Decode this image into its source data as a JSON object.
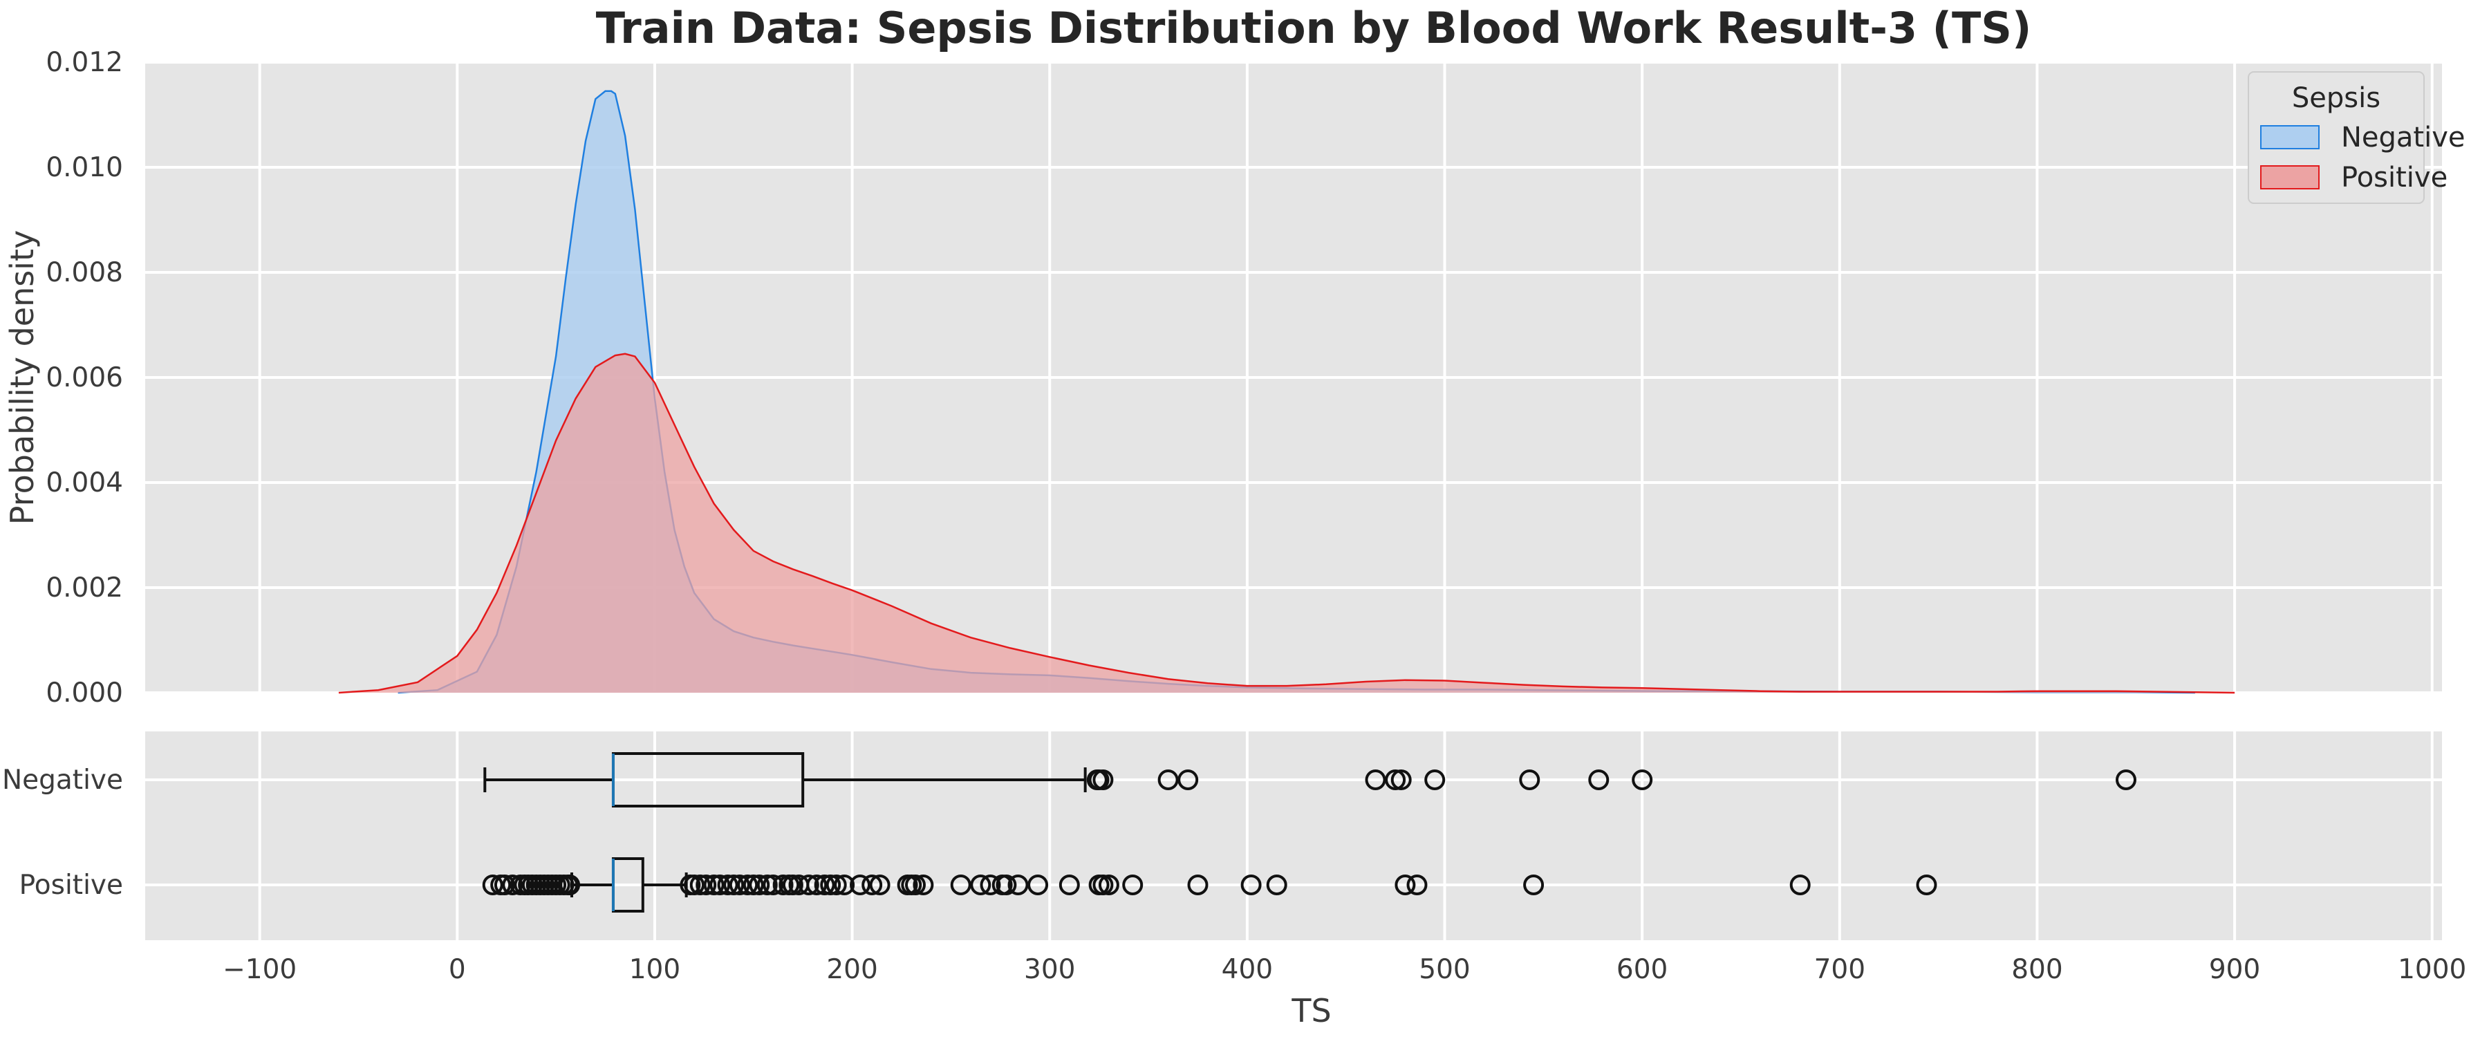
{
  "chart_data": {
    "title": "Train Data: Sepsis Distribution by Blood Work Result-3 (TS)",
    "xlabel": "TS",
    "xlim": [
      -158,
      1005
    ],
    "x_ticks": [
      -100,
      0,
      100,
      200,
      300,
      400,
      500,
      600,
      700,
      800,
      900,
      1000
    ],
    "x_tick_labels": [
      "−100",
      "0",
      "100",
      "200",
      "300",
      "400",
      "500",
      "600",
      "700",
      "800",
      "900",
      "1000"
    ],
    "grid": true,
    "legend": {
      "title": "Sepsis",
      "placement": "top-right",
      "entries": [
        "Negative",
        "Positive"
      ]
    },
    "panels": [
      {
        "type": "area",
        "kind": "kde",
        "ylabel": "Probability density",
        "ylim": [
          0,
          0.012
        ],
        "y_ticks": [
          0,
          0.002,
          0.004,
          0.006,
          0.008,
          0.01,
          0.012
        ],
        "y_tick_labels": [
          "0.000",
          "0.002",
          "0.004",
          "0.006",
          "0.008",
          "0.010",
          "0.012"
        ],
        "series": [
          {
            "name": "Negative",
            "color": "#1f7fe0",
            "fill": "#aecff0",
            "x": [
              -30,
              -10,
              10,
              20,
              30,
              40,
              50,
              55,
              60,
              65,
              70,
              75,
              78,
              80,
              85,
              90,
              95,
              100,
              105,
              110,
              115,
              120,
              130,
              140,
              150,
              160,
              170,
              180,
              190,
              200,
              220,
              240,
              260,
              280,
              300,
              320,
              340,
              360,
              380,
              400,
              430,
              460,
              490,
              520,
              550,
              580,
              610,
              650,
              700,
              750,
              800,
              850,
              880
            ],
            "y": [
              0,
              5e-05,
              0.0004,
              0.0011,
              0.0024,
              0.0042,
              0.0064,
              0.0079,
              0.0093,
              0.0105,
              0.0113,
              0.01145,
              0.01145,
              0.0114,
              0.0106,
              0.0092,
              0.0074,
              0.0056,
              0.0042,
              0.0031,
              0.0024,
              0.0019,
              0.0014,
              0.00117,
              0.00105,
              0.00097,
              0.0009,
              0.00084,
              0.00078,
              0.00072,
              0.00058,
              0.00045,
              0.00038,
              0.00035,
              0.00033,
              0.00028,
              0.00022,
              0.00017,
              0.00013,
              0.0001,
              8e-05,
              7e-05,
              6e-05,
              6e-05,
              5e-05,
              4e-05,
              3e-05,
              3e-05,
              2e-05,
              2e-05,
              1e-05,
              1e-05,
              0
            ]
          },
          {
            "name": "Positive",
            "color": "#e31a1c",
            "fill": "#eca3a3",
            "x": [
              -60,
              -40,
              -20,
              0,
              10,
              20,
              30,
              40,
              50,
              60,
              70,
              80,
              85,
              90,
              100,
              110,
              120,
              130,
              140,
              150,
              160,
              170,
              180,
              190,
              200,
              220,
              240,
              260,
              280,
              300,
              320,
              340,
              360,
              380,
              400,
              420,
              440,
              460,
              480,
              500,
              520,
              540,
              560,
              580,
              600,
              620,
              640,
              660,
              680,
              700,
              720,
              740,
              760,
              780,
              800,
              820,
              840,
              860,
              880,
              900
            ],
            "y": [
              0,
              5e-05,
              0.0002,
              0.0007,
              0.0012,
              0.0019,
              0.0028,
              0.0038,
              0.0048,
              0.0056,
              0.0062,
              0.00642,
              0.00645,
              0.0064,
              0.0059,
              0.0051,
              0.0043,
              0.0036,
              0.0031,
              0.0027,
              0.0025,
              0.00235,
              0.00222,
              0.00208,
              0.00195,
              0.00165,
              0.00132,
              0.00105,
              0.00085,
              0.00068,
              0.00052,
              0.00038,
              0.00026,
              0.00018,
              0.00013,
              0.00013,
              0.00016,
              0.00021,
              0.00024,
              0.00023,
              0.00019,
              0.00015,
              0.00012,
              0.0001,
              9e-05,
              7e-05,
              5e-05,
              3e-05,
              2e-05,
              2e-05,
              2e-05,
              2e-05,
              2e-05,
              2e-05,
              3e-05,
              3e-05,
              3e-05,
              2e-05,
              1e-05,
              0
            ]
          }
        ]
      },
      {
        "type": "box",
        "categories": [
          "Negative",
          "Positive"
        ],
        "boxes": [
          {
            "category": "Negative",
            "whisker_low": 14,
            "q1": 79,
            "median": 79,
            "q3": 175,
            "whisker_high": 318,
            "outliers": [
              324,
              325,
              327,
              360,
              370,
              465,
              475,
              478,
              495,
              543,
              578,
              600,
              845
            ]
          },
          {
            "category": "Positive",
            "whisker_low": 58,
            "q1": 79,
            "median": 79,
            "q3": 94,
            "whisker_high": 116,
            "outliers": [
              18,
              22,
              24,
              28,
              32,
              34,
              36,
              38,
              40,
              42,
              44,
              46,
              48,
              50,
              52,
              54,
              56,
              57,
              118,
              120,
              123,
              126,
              130,
              133,
              137,
              140,
              143,
              147,
              150,
              153,
              157,
              160,
              165,
              168,
              170,
              173,
              178,
              182,
              186,
              189,
              192,
              196,
              204,
              210,
              214,
              228,
              230,
              232,
              236,
              255,
              265,
              270,
              276,
              278,
              284,
              294,
              310,
              325,
              327,
              330,
              342,
              375,
              402,
              415,
              480,
              486,
              545,
              680,
              744
            ]
          }
        ]
      }
    ]
  }
}
